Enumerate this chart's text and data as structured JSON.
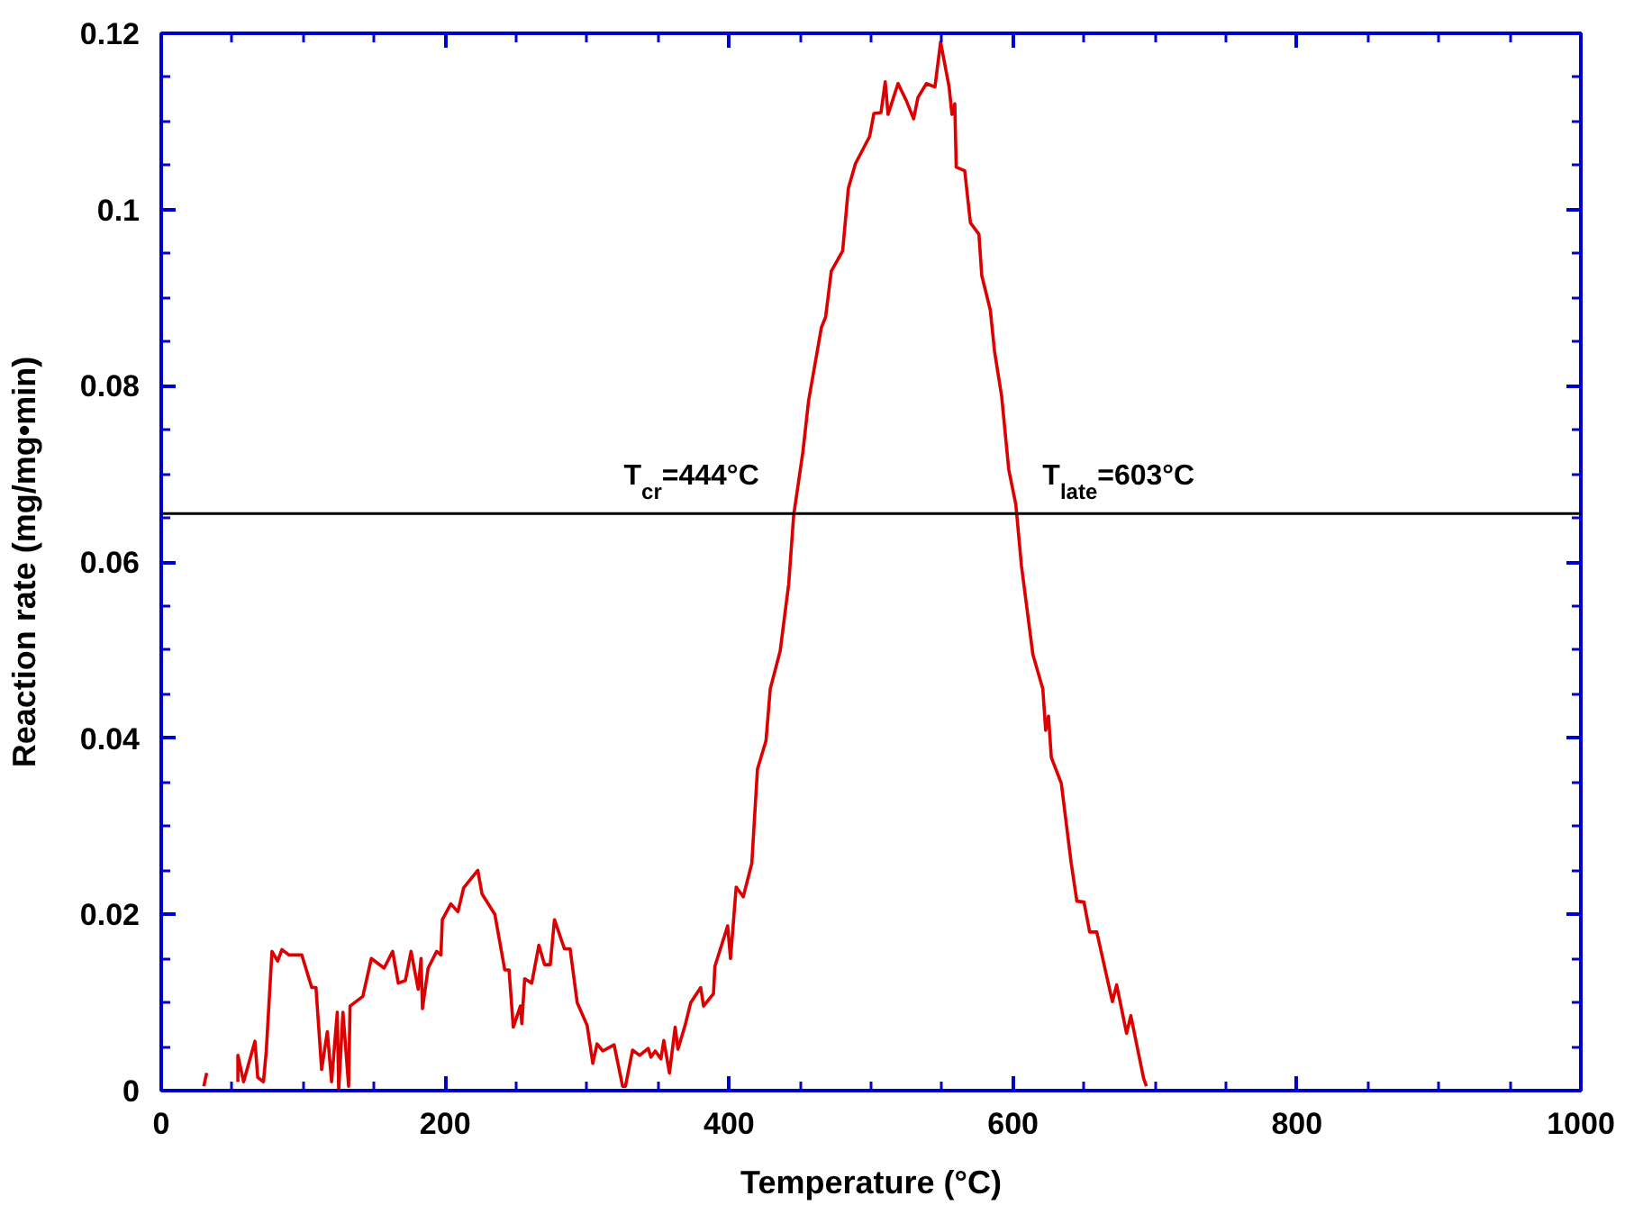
{
  "chart_data": {
    "type": "line",
    "xlabel": "Temperature (°C)",
    "ylabel": "Reaction rate (mg/mg•min)",
    "xlim": [
      0,
      1000
    ],
    "xticks": [
      0,
      200,
      400,
      600,
      800,
      1000
    ],
    "ylim": [
      0,
      0.12
    ],
    "yticks": [
      0,
      0.02,
      0.04,
      0.06,
      0.08,
      0.1,
      0.12
    ],
    "grid": false,
    "line_style": "solid",
    "ref_lines": [
      {
        "axis": "y",
        "value": 0.0655,
        "color": "#000000"
      }
    ],
    "annotations": [
      {
        "text": "T$_{cr}$=444°C",
        "x": 444,
        "y": 0.0655
      },
      {
        "text": "T$_{late}$=603°C",
        "x": 603,
        "y": 0.0655
      }
    ],
    "series": [
      {
        "color": "#dd0000",
        "x": [
          30,
          32,
          33,
          54,
          54,
          58,
          66,
          68,
          72,
          74,
          78,
          82,
          85,
          90,
          99,
          106,
          109,
          113,
          117,
          120,
          124,
          125,
          128,
          132,
          133,
          142,
          148,
          157,
          163,
          167,
          172,
          176,
          181,
          183,
          184,
          188,
          194,
          197,
          198,
          204,
          209,
          213,
          223,
          226,
          235,
          242,
          245,
          248,
          253,
          254,
          256,
          261,
          266,
          270,
          274,
          277,
          284,
          288,
          293,
          300,
          304,
          307,
          311,
          319,
          325,
          327,
          332,
          337,
          343,
          345,
          348,
          352,
          354,
          358,
          362,
          364,
          369,
          373,
          380,
          382,
          389,
          390,
          399,
          401,
          405,
          410,
          416,
          420,
          426,
          429,
          436,
          442,
          445.5,
          452,
          456,
          465,
          468,
          472,
          480,
          484,
          489,
          499,
          502,
          507,
          510,
          512,
          519,
          525,
          530,
          533,
          539,
          545,
          549,
          555,
          557,
          559,
          560,
          566,
          570,
          576,
          578,
          584,
          587,
          592,
          597,
          602,
          606,
          614,
          621,
          623,
          625,
          627,
          634,
          641,
          645,
          650,
          654,
          659,
          670,
          673,
          680,
          683,
          692,
          694
        ],
        "values": [
          0.0005,
          0.002,
          null,
          0.001,
          0.004,
          0.001,
          0.0056,
          0.0015,
          0.001,
          0.0045,
          0.0158,
          0.0147,
          0.016,
          0.0154,
          0.0154,
          0.0117,
          0.0117,
          0.0024,
          0.0067,
          0.001,
          0.0089,
          0.0,
          0.0089,
          0.0005,
          0.0096,
          0.0107,
          0.015,
          0.0139,
          0.0158,
          0.0122,
          0.0125,
          0.0158,
          0.0115,
          0.015,
          0.0093,
          0.0139,
          0.0158,
          0.0154,
          0.0194,
          0.0212,
          0.0203,
          0.023,
          0.025,
          0.0223,
          0.02,
          0.0137,
          0.0137,
          0.0072,
          0.0096,
          0.0076,
          0.0127,
          0.0122,
          0.0165,
          0.0143,
          0.0143,
          0.0194,
          0.0161,
          0.0161,
          0.01,
          0.0074,
          0.0031,
          0.0053,
          0.0045,
          0.0052,
          0.0005,
          0.0005,
          0.0046,
          0.004,
          0.0048,
          0.0038,
          0.0045,
          0.0036,
          0.0057,
          0.002,
          0.0072,
          0.0047,
          0.0074,
          0.01,
          0.0117,
          0.0096,
          0.011,
          0.0141,
          0.0187,
          0.015,
          0.0231,
          0.022,
          0.0258,
          0.0365,
          0.0397,
          0.0456,
          0.0499,
          0.0575,
          0.0653,
          0.0725,
          0.0783,
          0.0866,
          0.0878,
          0.093,
          0.0953,
          0.1024,
          0.1052,
          0.1083,
          0.1109,
          0.111,
          0.1145,
          0.1108,
          0.1143,
          0.1123,
          0.1103,
          0.1127,
          0.1143,
          0.1139,
          0.119,
          0.1139,
          0.1108,
          0.112,
          0.1048,
          0.1044,
          0.0985,
          0.0972,
          0.0925,
          0.0886,
          0.0839,
          0.0788,
          0.0705,
          0.0665,
          0.0595,
          0.0495,
          0.0456,
          0.0409,
          0.0425,
          0.0378,
          0.0349,
          0.0258,
          0.0215,
          0.0214,
          0.018,
          0.018,
          0.0101,
          0.012,
          0.0065,
          0.0085,
          0.0014,
          0.0005
        ]
      }
    ]
  }
}
